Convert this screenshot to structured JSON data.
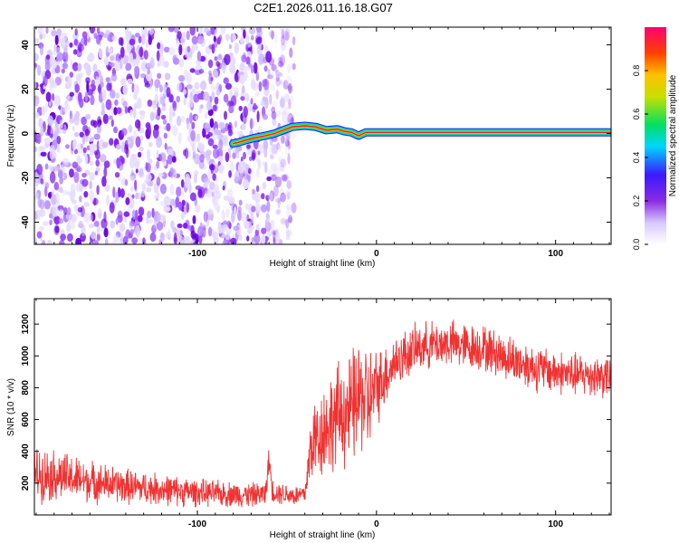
{
  "title": "C2E1.2026.011.16.18.G07",
  "chart_data": [
    {
      "type": "heatmap",
      "xlabel": "Height of straight line (km)",
      "ylabel": "Frequency (Hz)",
      "xlim": [
        -191,
        131
      ],
      "ylim": [
        -50,
        48
      ],
      "xticks": [
        "-100",
        "0",
        "100"
      ],
      "xtick_values": [
        -100,
        0,
        100
      ],
      "yticks": [
        "40",
        "20",
        "0",
        "-20",
        "-40"
      ],
      "ytick_values": [
        40,
        20,
        0,
        -20,
        -40
      ],
      "ridge": [
        {
          "x": -80,
          "f": -4.5
        },
        {
          "x": -77,
          "f": -4
        },
        {
          "x": -73,
          "f": -3
        },
        {
          "x": -68,
          "f": -2
        },
        {
          "x": -62,
          "f": -1
        },
        {
          "x": -57,
          "f": 0
        },
        {
          "x": -52,
          "f": 1.5
        },
        {
          "x": -47,
          "f": 3
        },
        {
          "x": -40,
          "f": 3.5
        },
        {
          "x": -34,
          "f": 3
        },
        {
          "x": -28,
          "f": 1.5
        },
        {
          "x": -22,
          "f": 2
        },
        {
          "x": -18,
          "f": 1
        },
        {
          "x": -14,
          "f": 0.5
        },
        {
          "x": -10,
          "f": -1
        },
        {
          "x": -6,
          "f": 0.5
        },
        {
          "x": 0,
          "f": 0.5
        },
        {
          "x": 40,
          "f": 0.5
        },
        {
          "x": 80,
          "f": 0.5
        },
        {
          "x": 131,
          "f": 0.5
        }
      ],
      "colorbar": {
        "label": "Normalized spectral amplitude",
        "ticks": [
          "0.0",
          "0.2",
          "0.4",
          "0.6",
          "0.8"
        ],
        "tick_values": [
          0,
          0.2,
          0.4,
          0.6,
          0.8
        ],
        "range": [
          0,
          1
        ],
        "colors": [
          "#ffffff",
          "#d6c8ff",
          "#8a2be2",
          "#3a1aff",
          "#00d5ff",
          "#00e060",
          "#c8e000",
          "#ffc000",
          "#ff4000",
          "#ff0070"
        ]
      }
    },
    {
      "type": "line",
      "xlabel": "Height of straight line (km)",
      "ylabel": "SNR (10 * v/v)",
      "xlim": [
        -191,
        131
      ],
      "ylim": [
        0,
        1360
      ],
      "xticks": [
        "-100",
        "0",
        "100"
      ],
      "xtick_values": [
        -100,
        0,
        100
      ],
      "yticks": [
        "1200",
        "1000",
        "800",
        "600",
        "400",
        "200"
      ],
      "ytick_values": [
        1200,
        1000,
        800,
        600,
        400,
        200
      ],
      "series": [
        {
          "name": "SNR",
          "color": "#f03232",
          "x": [
            -191,
            -180,
            -170,
            -160,
            -150,
            -140,
            -130,
            -120,
            -110,
            -100,
            -90,
            -80,
            -70,
            -62,
            -60,
            -58,
            -55,
            -50,
            -45,
            -40,
            -37,
            -35,
            -32,
            -28,
            -25,
            -22,
            -18,
            -15,
            -12,
            -8,
            -5,
            0,
            5,
            10,
            15,
            20,
            25,
            30,
            40,
            50,
            60,
            70,
            80,
            90,
            100,
            110,
            120,
            131
          ],
          "values": [
            260,
            250,
            230,
            210,
            195,
            180,
            170,
            160,
            150,
            140,
            135,
            130,
            125,
            130,
            350,
            150,
            140,
            130,
            120,
            130,
            400,
            470,
            500,
            560,
            580,
            620,
            650,
            640,
            700,
            760,
            700,
            800,
            880,
            960,
            1000,
            1030,
            1060,
            1070,
            1080,
            1060,
            1050,
            1000,
            960,
            920,
            900,
            880,
            880,
            870
          ],
          "spread": [
            200,
            190,
            170,
            150,
            140,
            130,
            120,
            115,
            110,
            100,
            95,
            95,
            90,
            90,
            100,
            90,
            85,
            80,
            80,
            80,
            250,
            300,
            330,
            350,
            370,
            380,
            400,
            420,
            430,
            430,
            420,
            280,
            230,
            200,
            190,
            180,
            170,
            170,
            170,
            170,
            170,
            170,
            170,
            170,
            160,
            160,
            160,
            160
          ]
        }
      ]
    }
  ]
}
